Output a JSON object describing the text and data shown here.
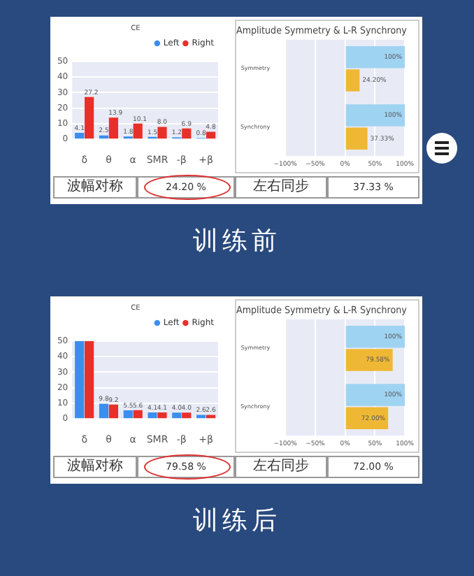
{
  "chart_data": [
    {
      "type": "bar",
      "title": "CE",
      "categories": [
        "δ",
        "θ",
        "α",
        "SMR",
        "-β",
        "+β"
      ],
      "series": [
        {
          "name": "Left",
          "color": "#3b8ef0",
          "values": [
            4.1,
            2.5,
            1.8,
            1.5,
            1.2,
            0.8
          ],
          "value_labels": [
            "4.1",
            "2.5",
            "1.8",
            "1.5",
            "1.2",
            "0.8"
          ]
        },
        {
          "name": "Right",
          "color": "#e8302a",
          "values": [
            27.2,
            13.9,
            10.1,
            8.0,
            6.9,
            4.8
          ],
          "value_labels": [
            "27.2",
            "13.9",
            "10.1",
            "8.0",
            "6.9",
            "4.8"
          ]
        }
      ],
      "ylim": [
        0,
        50
      ],
      "yticks": [
        0,
        10,
        20,
        30,
        40,
        50
      ],
      "grid": "y",
      "legend": "top right"
    },
    {
      "type": "bar",
      "orientation": "horizontal",
      "title": "Amplitude Symmetry & L-R Synchrony",
      "categories": [
        "Symmetry",
        "Synchrony"
      ],
      "series": [
        {
          "color": "#9fd3f2",
          "values": [
            100,
            100
          ],
          "value_labels": [
            "100%",
            "100%"
          ]
        },
        {
          "color": "#efb834",
          "values": [
            24.2,
            37.33
          ],
          "value_labels": [
            "24.20%",
            "37.33%"
          ]
        }
      ],
      "xlim": [
        -100,
        100
      ],
      "xticks": [
        {
          "value": -100,
          "label": "−100%"
        },
        {
          "value": -50,
          "label": "−50%"
        },
        {
          "value": 0,
          "label": "0%"
        },
        {
          "value": 50,
          "label": "50%"
        },
        {
          "value": 100,
          "label": "100%"
        }
      ],
      "grid": "x"
    },
    {
      "type": "other",
      "annotations": [
        "波幅对称",
        "24.20 %",
        "左右同步",
        "37.33 %",
        "训练前"
      ]
    },
    {
      "type": "bar",
      "title": "CE",
      "categories": [
        "δ",
        "θ",
        "α",
        "SMR",
        "-β",
        "+β"
      ],
      "series": [
        {
          "name": "Left",
          "color": "#3b8ef0",
          "values": [
            50,
            9.8,
            5.5,
            4.1,
            4.0,
            2.6
          ],
          "value_labels": [
            null,
            "9.8",
            "5.5",
            "4.1",
            "4.0",
            "2.6"
          ]
        },
        {
          "name": "Right",
          "color": "#e8302a",
          "values": [
            50,
            9.2,
            5.6,
            4.1,
            4.0,
            2.6
          ],
          "value_labels": [
            null,
            "9.2",
            "5.6",
            "4.1",
            "4.0",
            "2.6"
          ]
        }
      ],
      "ylim": [
        0,
        50
      ],
      "yticks": [
        0,
        10,
        20,
        30,
        40,
        50
      ],
      "grid": "y",
      "legend": "top right"
    },
    {
      "type": "bar",
      "orientation": "horizontal",
      "title": "Amplitude Symmetry & L-R Synchrony",
      "categories": [
        "Symmetry",
        "Synchrony"
      ],
      "series": [
        {
          "color": "#9fd3f2",
          "values": [
            100,
            100
          ],
          "value_labels": [
            "100%",
            "100%"
          ]
        },
        {
          "color": "#efb834",
          "values": [
            79.58,
            72.0
          ],
          "value_labels": [
            "79.58%",
            "72.00%"
          ]
        }
      ],
      "xlim": [
        -100,
        100
      ],
      "xticks": [
        {
          "value": -100,
          "label": "−100%"
        },
        {
          "value": -50,
          "label": "−50%"
        },
        {
          "value": 0,
          "label": "0%"
        },
        {
          "value": 50,
          "label": "50%"
        },
        {
          "value": 100,
          "label": "100%"
        }
      ],
      "grid": "x"
    },
    {
      "type": "other",
      "annotations": [
        "波幅对称",
        "79.58 %",
        "左右同步",
        "72.00 %",
        "训练后"
      ]
    }
  ]
}
